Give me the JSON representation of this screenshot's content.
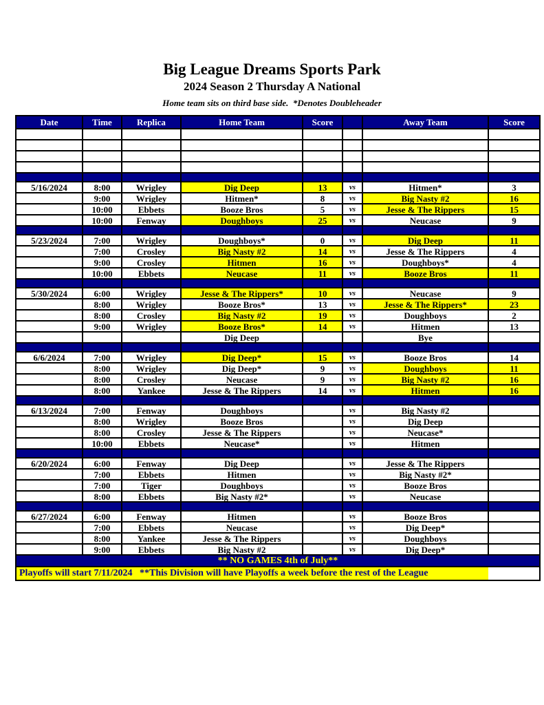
{
  "page": {
    "title": "Big League Dreams Sports Park",
    "subtitle": "2024 Season 2 Thursday A National",
    "note": "Home team sits on third base side.  *Denotes Doubleheader"
  },
  "colors": {
    "navy": "#00008B",
    "yellow": "#FFFF00",
    "border_black": "#000000",
    "header_text": "#FFFFFF"
  },
  "table": {
    "headers": {
      "date": "Date",
      "time": "Time",
      "replica": "Replica",
      "home": "Home Team",
      "home_score": "Score",
      "vs": "",
      "away": "Away Team",
      "away_score": "Score"
    },
    "vs_label": "vs",
    "empty_row_count": 4,
    "blocks": [
      {
        "date": "5/16/2024",
        "games": [
          {
            "time": "8:00",
            "replica": "Wrigley",
            "home": "Dig Deep",
            "home_score": "13",
            "away": "Hitmen*",
            "away_score": "3",
            "home_hl": true,
            "away_hl": false,
            "vs": true
          },
          {
            "time": "9:00",
            "replica": "Wrigley",
            "home": "Hitmen*",
            "home_score": "8",
            "away": "Big Nasty #2",
            "away_score": "16",
            "home_hl": false,
            "away_hl": true,
            "vs": true
          },
          {
            "time": "10:00",
            "replica": "Ebbets",
            "home": "Booze Bros",
            "home_score": "5",
            "away": "Jesse & The Rippers",
            "away_score": "15",
            "home_hl": false,
            "away_hl": true,
            "vs": true
          },
          {
            "time": "10:00",
            "replica": "Fenway",
            "home": "Doughboys",
            "home_score": "25",
            "away": "Neucase",
            "away_score": "9",
            "home_hl": true,
            "away_hl": false,
            "vs": true
          }
        ]
      },
      {
        "date": "5/23/2024",
        "games": [
          {
            "time": "7:00",
            "replica": "Wrigley",
            "home": "Doughboys*",
            "home_score": "0",
            "away": "Dig Deep",
            "away_score": "11",
            "home_hl": false,
            "away_hl": true,
            "vs": true
          },
          {
            "time": "7:00",
            "replica": "Crosley",
            "home": "Big Nasty #2",
            "home_score": "14",
            "away": "Jesse & The Rippers",
            "away_score": "4",
            "home_hl": true,
            "away_hl": false,
            "vs": true
          },
          {
            "time": "9:00",
            "replica": "Crosley",
            "home": "Hitmen",
            "home_score": "16",
            "away": "Doughboys*",
            "away_score": "4",
            "home_hl": true,
            "away_hl": false,
            "vs": true
          },
          {
            "time": "10:00",
            "replica": "Ebbets",
            "home": "Neucase",
            "home_score": "11",
            "away": "Booze Bros",
            "away_score": "11",
            "home_hl": true,
            "away_hl": true,
            "vs": true
          }
        ]
      },
      {
        "date": "5/30/2024",
        "games": [
          {
            "time": "6:00",
            "replica": "Wrigley",
            "home": "Jesse & The Rippers*",
            "home_score": "10",
            "away": "Neucase",
            "away_score": "9",
            "home_hl": true,
            "away_hl": false,
            "vs": true
          },
          {
            "time": "8:00",
            "replica": "Wrigley",
            "home": "Booze Bros*",
            "home_score": "13",
            "away": "Jesse & The Rippers*",
            "away_score": "23",
            "home_hl": false,
            "away_hl": true,
            "vs": true
          },
          {
            "time": "8:00",
            "replica": "Crosley",
            "home": "Big Nasty #2",
            "home_score": "19",
            "away": "Doughboys",
            "away_score": "2",
            "home_hl": true,
            "away_hl": false,
            "vs": true
          },
          {
            "time": "9:00",
            "replica": "Wrigley",
            "home": "Booze Bros*",
            "home_score": "14",
            "away": "Hitmen",
            "away_score": "13",
            "home_hl": true,
            "away_hl": false,
            "vs": true
          },
          {
            "time": "",
            "replica": "",
            "home": "Dig Deep",
            "home_score": "",
            "away": "Bye",
            "away_score": "",
            "home_hl": false,
            "away_hl": false,
            "vs": false
          }
        ]
      },
      {
        "date": "6/6/2024",
        "games": [
          {
            "time": "7:00",
            "replica": "Wrigley",
            "home": "Dig Deep*",
            "home_score": "15",
            "away": "Booze Bros",
            "away_score": "14",
            "home_hl": true,
            "away_hl": false,
            "vs": true
          },
          {
            "time": "8:00",
            "replica": "Wrigley",
            "home": "Dig Deep*",
            "home_score": "9",
            "away": "Doughboys",
            "away_score": "11",
            "home_hl": false,
            "away_hl": true,
            "vs": true
          },
          {
            "time": "8:00",
            "replica": "Crosley",
            "home": "Neucase",
            "home_score": "9",
            "away": "Big Nasty #2",
            "away_score": "16",
            "home_hl": false,
            "away_hl": true,
            "vs": true
          },
          {
            "time": "8:00",
            "replica": "Yankee",
            "home": "Jesse & The Rippers",
            "home_score": "14",
            "away": "Hitmen",
            "away_score": "16",
            "home_hl": false,
            "away_hl": true,
            "vs": true
          }
        ]
      },
      {
        "date": "6/13/2024",
        "games": [
          {
            "time": "7:00",
            "replica": "Fenway",
            "home": "Doughboys",
            "home_score": "",
            "away": "Big Nasty #2",
            "away_score": "",
            "home_hl": false,
            "away_hl": false,
            "vs": true
          },
          {
            "time": "8:00",
            "replica": "Wrigley",
            "home": "Booze Bros",
            "home_score": "",
            "away": "Dig Deep",
            "away_score": "",
            "home_hl": false,
            "away_hl": false,
            "vs": true
          },
          {
            "time": "8:00",
            "replica": "Crosley",
            "home": "Jesse & The Rippers",
            "home_score": "",
            "away": "Neucase*",
            "away_score": "",
            "home_hl": false,
            "away_hl": false,
            "vs": true
          },
          {
            "time": "10:00",
            "replica": "Ebbets",
            "home": "Neucase*",
            "home_score": "",
            "away": "Hitmen",
            "away_score": "",
            "home_hl": false,
            "away_hl": false,
            "vs": true
          }
        ]
      },
      {
        "date": "6/20/2024",
        "games": [
          {
            "time": "6:00",
            "replica": "Fenway",
            "home": "Dig Deep",
            "home_score": "",
            "away": "Jesse & The Rippers",
            "away_score": "",
            "home_hl": false,
            "away_hl": false,
            "vs": true
          },
          {
            "time": "7:00",
            "replica": "Ebbets",
            "home": "Hitmen",
            "home_score": "",
            "away": "Big Nasty #2*",
            "away_score": "",
            "home_hl": false,
            "away_hl": false,
            "vs": true
          },
          {
            "time": "7:00",
            "replica": "Tiger",
            "home": "Doughboys",
            "home_score": "",
            "away": "Booze Bros",
            "away_score": "",
            "home_hl": false,
            "away_hl": false,
            "vs": true
          },
          {
            "time": "8:00",
            "replica": "Ebbets",
            "home": "Big Nasty #2*",
            "home_score": "",
            "away": "Neucase",
            "away_score": "",
            "home_hl": false,
            "away_hl": false,
            "vs": true
          }
        ]
      },
      {
        "date": "6/27/2024",
        "games": [
          {
            "time": "6:00",
            "replica": "Fenway",
            "home": "Hitmen",
            "home_score": "",
            "away": "Booze Bros",
            "away_score": "",
            "home_hl": false,
            "away_hl": false,
            "vs": true
          },
          {
            "time": "7:00",
            "replica": "Ebbets",
            "home": "Neucase",
            "home_score": "",
            "away": "Dig Deep*",
            "away_score": "",
            "home_hl": false,
            "away_hl": false,
            "vs": true
          },
          {
            "time": "8:00",
            "replica": "Yankee",
            "home": "Jesse & The Rippers",
            "home_score": "",
            "away": "Doughboys",
            "away_score": "",
            "home_hl": false,
            "away_hl": false,
            "vs": true
          },
          {
            "time": "9:00",
            "replica": "Ebbets",
            "home": "Big Nasty #2",
            "home_score": "",
            "away": "Dig Deep*",
            "away_score": "",
            "home_hl": false,
            "away_hl": false,
            "vs": true
          }
        ]
      }
    ],
    "no_games_note": "** NO GAMES 4th of July**",
    "footer_note": "Playoffs will start 7/11/2024   **This Division will have Playoffs a week before the rest of the League"
  }
}
